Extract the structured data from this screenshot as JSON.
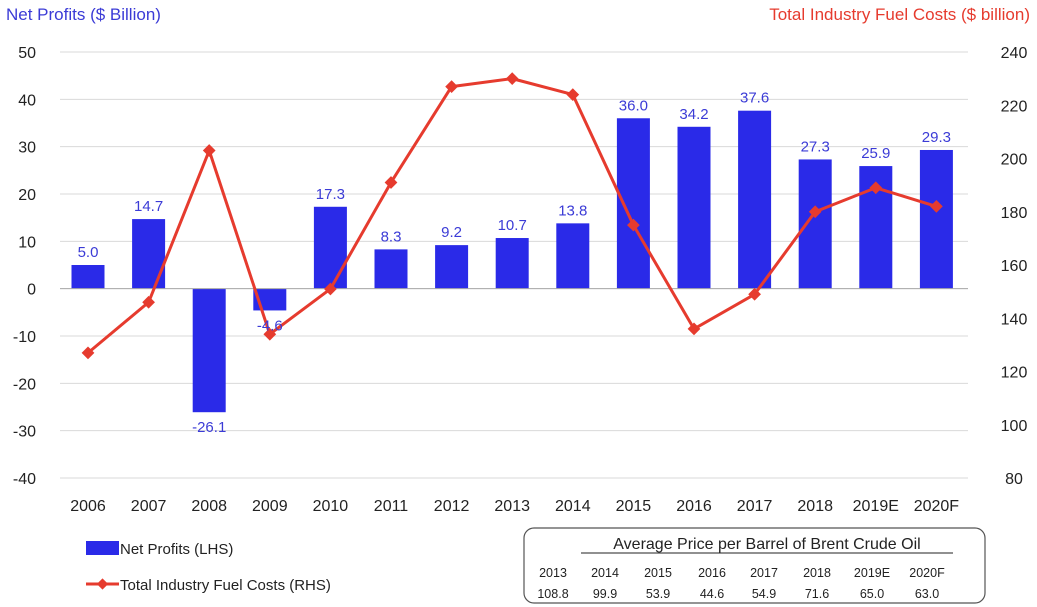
{
  "chart_data": {
    "type": "bar+line",
    "categories": [
      "2006",
      "2007",
      "2008",
      "2009",
      "2010",
      "2011",
      "2012",
      "2013",
      "2014",
      "2015",
      "2016",
      "2017",
      "2018",
      "2019E",
      "2020F"
    ],
    "series": [
      {
        "name": "Net Profits (LHS)",
        "type": "bar",
        "axis": "left",
        "values": [
          5.0,
          14.7,
          -26.1,
          -4.6,
          17.3,
          8.3,
          9.2,
          10.7,
          13.8,
          36.0,
          34.2,
          37.6,
          27.3,
          25.9,
          29.3
        ],
        "labels": [
          "5.0",
          "14.7",
          "-26.1",
          "-4.6",
          "17.3",
          "8.3",
          "9.2",
          "10.7",
          "13.8",
          "36.0",
          "34.2",
          "37.6",
          "27.3",
          "25.9",
          "29.3"
        ]
      },
      {
        "name": "Total Industry Fuel Costs (RHS)",
        "type": "line",
        "axis": "right",
        "values": [
          127,
          146,
          203,
          134,
          151,
          191,
          227,
          230,
          224,
          175,
          136,
          149,
          180,
          189,
          182
        ]
      }
    ],
    "y_left": {
      "label": "Net Profits ($ Billion)",
      "min": -40,
      "max": 50,
      "ticks": [
        -40,
        -30,
        -20,
        -10,
        0,
        10,
        20,
        30,
        40,
        50
      ]
    },
    "y_right": {
      "label": "Total Industry Fuel Costs ($ billion)",
      "min": 80,
      "max": 240,
      "ticks": [
        80,
        100,
        120,
        140,
        160,
        180,
        200,
        220,
        240
      ]
    },
    "grid": true,
    "legend_position": "bottom-left",
    "colors": {
      "bar": "#2a2ae8",
      "line": "#e63b2e",
      "bar_label": "#3b3bd6",
      "grid": "#d9d9d9",
      "left_title": "#3b3bd6",
      "right_title": "#e63b2e"
    }
  },
  "brent_table": {
    "title": "Average Price per Barrel of Brent Crude Oil",
    "years": [
      "2013",
      "2014",
      "2015",
      "2016",
      "2017",
      "2018",
      "2019E",
      "2020F"
    ],
    "prices": [
      "108.8",
      "99.9",
      "53.9",
      "44.6",
      "54.9",
      "71.6",
      "65.0",
      "63.0"
    ]
  }
}
